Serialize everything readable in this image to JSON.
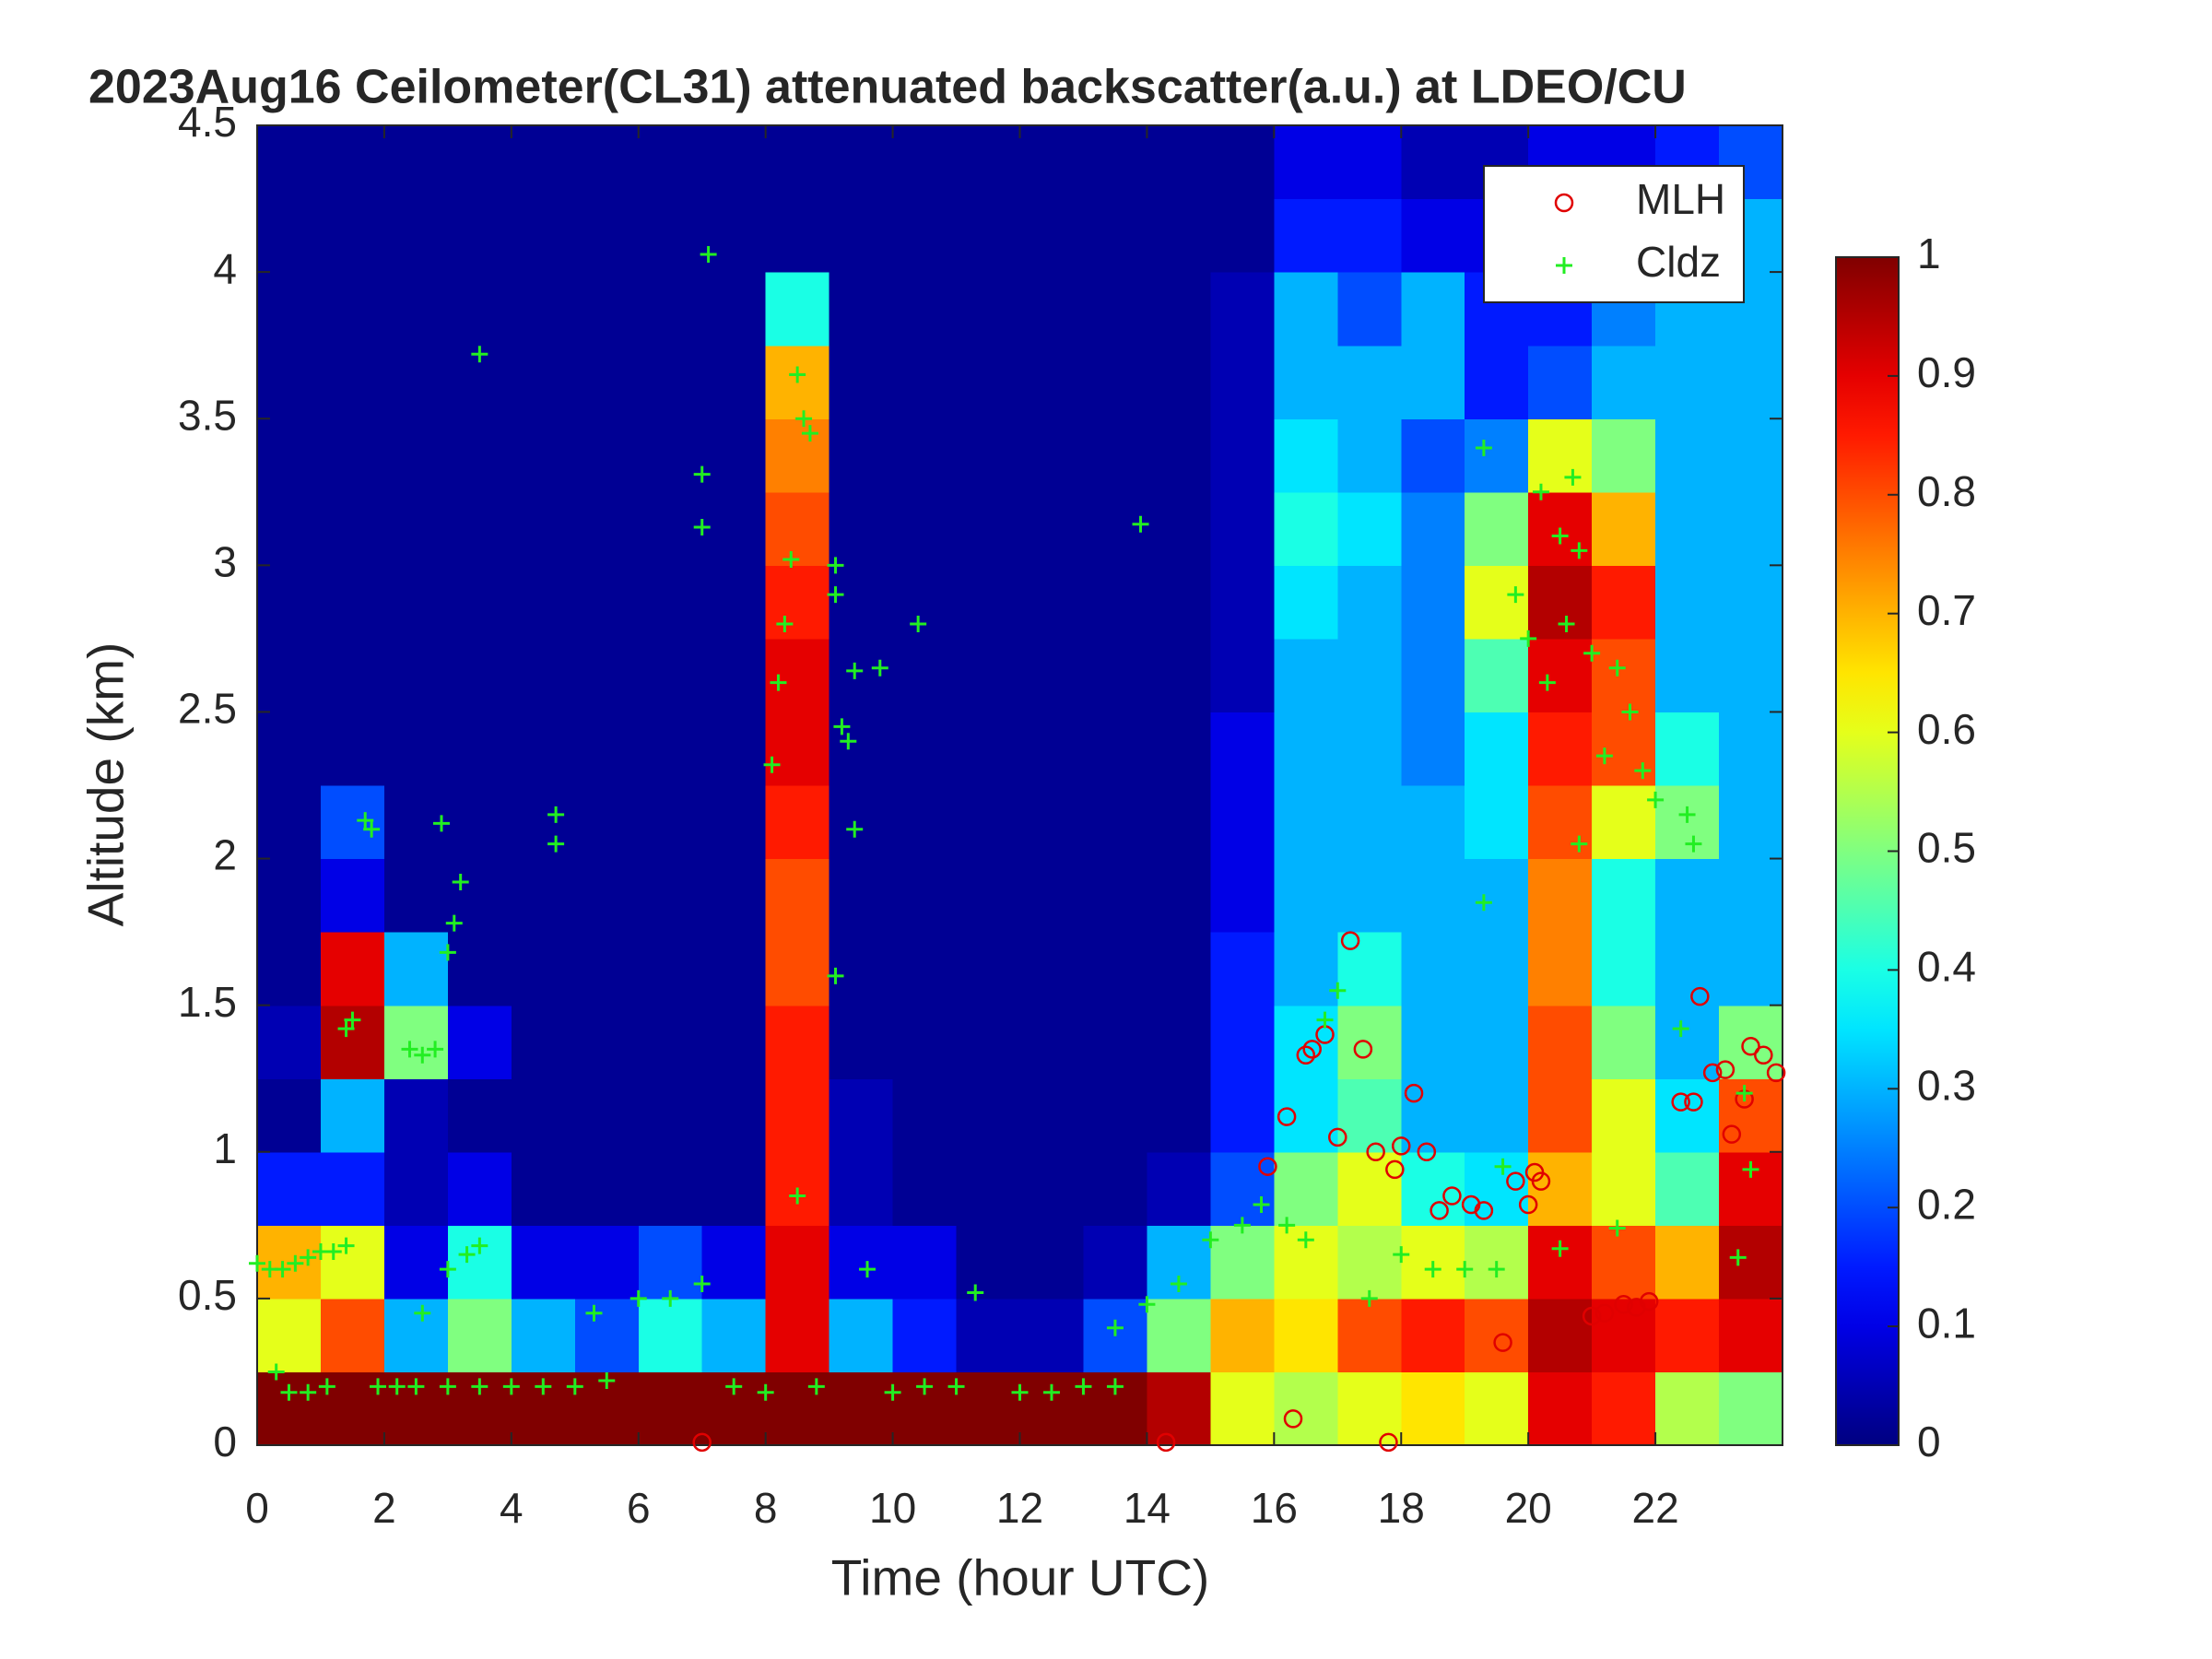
{
  "chart_data": {
    "type": "heatmap",
    "title": "2023Aug16 Ceilometer(CL31) attenuated backscatter(a.u.) at LDEO/CU",
    "xlabel": "Time (hour UTC)",
    "ylabel": "Altitude (km)",
    "xlim": [
      0,
      24
    ],
    "xticks": [
      0,
      2,
      4,
      6,
      8,
      10,
      12,
      14,
      16,
      18,
      20,
      22
    ],
    "ylim": [
      0,
      4.5
    ],
    "yticks": [
      0,
      0.5,
      1,
      1.5,
      2,
      2.5,
      3,
      3.5,
      4,
      4.5
    ],
    "xbins": [
      0,
      1,
      2,
      3,
      4,
      5,
      6,
      7,
      8,
      9,
      10,
      11,
      12,
      13,
      14,
      15,
      16,
      17,
      18,
      19,
      20,
      21,
      22,
      23,
      24
    ],
    "ybins": [
      0,
      0.25,
      0.5,
      0.75,
      1,
      1.25,
      1.5,
      1.75,
      2,
      2.25,
      2.5,
      2.75,
      3,
      3.25,
      3.5,
      3.75,
      4,
      4.25,
      4.5
    ],
    "z": [
      [
        1,
        1,
        1,
        1,
        1,
        1,
        1,
        1,
        1,
        1,
        1,
        1,
        1,
        1,
        0.95,
        0.6,
        0.55,
        0.6,
        0.65,
        0.6,
        0.9,
        0.85,
        0.55,
        0.5
      ],
      [
        0.6,
        0.8,
        0.3,
        0.5,
        0.3,
        0.2,
        0.4,
        0.3,
        0.9,
        0.3,
        0.15,
        0.05,
        0.05,
        0.2,
        0.5,
        0.7,
        0.65,
        0.8,
        0.85,
        0.8,
        0.95,
        0.9,
        0.85,
        0.9
      ],
      [
        0.7,
        0.6,
        0.1,
        0.4,
        0.1,
        0.1,
        0.2,
        0.1,
        0.9,
        0.1,
        0.1,
        0.02,
        0.02,
        0.05,
        0.3,
        0.5,
        0.6,
        0.55,
        0.6,
        0.55,
        0.9,
        0.8,
        0.7,
        0.95
      ],
      [
        0.15,
        0.15,
        0.05,
        0.1,
        0.02,
        0.02,
        0.02,
        0.02,
        0.85,
        0.05,
        0.02,
        0.02,
        0.02,
        0.02,
        0.05,
        0.2,
        0.5,
        0.6,
        0.4,
        0.35,
        0.7,
        0.6,
        0.45,
        0.9
      ],
      [
        0.02,
        0.3,
        0.05,
        0.02,
        0.02,
        0.02,
        0.02,
        0.02,
        0.85,
        0.05,
        0.02,
        0.02,
        0.02,
        0.02,
        0.02,
        0.15,
        0.35,
        0.45,
        0.3,
        0.3,
        0.8,
        0.6,
        0.35,
        0.8
      ],
      [
        0.05,
        0.95,
        0.5,
        0.1,
        0.02,
        0.02,
        0.02,
        0.02,
        0.85,
        0.02,
        0.02,
        0.02,
        0.02,
        0.02,
        0.02,
        0.15,
        0.35,
        0.5,
        0.3,
        0.3,
        0.8,
        0.5,
        0.3,
        0.5
      ],
      [
        0.02,
        0.9,
        0.3,
        0.02,
        0.02,
        0.02,
        0.02,
        0.02,
        0.8,
        0.02,
        0.02,
        0.02,
        0.02,
        0.02,
        0.02,
        0.15,
        0.3,
        0.4,
        0.3,
        0.3,
        0.75,
        0.4,
        0.3,
        0.3
      ],
      [
        0.02,
        0.1,
        0.02,
        0.02,
        0.02,
        0.02,
        0.02,
        0.02,
        0.8,
        0.02,
        0.02,
        0.02,
        0.02,
        0.02,
        0.02,
        0.1,
        0.3,
        0.3,
        0.3,
        0.3,
        0.75,
        0.4,
        0.3,
        0.3
      ],
      [
        0.02,
        0.2,
        0.02,
        0.02,
        0.02,
        0.02,
        0.02,
        0.02,
        0.85,
        0.02,
        0.02,
        0.02,
        0.02,
        0.02,
        0.02,
        0.1,
        0.3,
        0.3,
        0.3,
        0.35,
        0.8,
        0.6,
        0.5,
        0.3
      ],
      [
        0.02,
        0.02,
        0.02,
        0.02,
        0.02,
        0.02,
        0.02,
        0.02,
        0.9,
        0.02,
        0.02,
        0.02,
        0.02,
        0.02,
        0.02,
        0.1,
        0.3,
        0.3,
        0.25,
        0.35,
        0.85,
        0.8,
        0.4,
        0.3
      ],
      [
        0.02,
        0.02,
        0.02,
        0.02,
        0.02,
        0.02,
        0.02,
        0.02,
        0.9,
        0.02,
        0.02,
        0.02,
        0.02,
        0.02,
        0.02,
        0.05,
        0.3,
        0.3,
        0.25,
        0.45,
        0.9,
        0.8,
        0.3,
        0.3
      ],
      [
        0.02,
        0.02,
        0.02,
        0.02,
        0.02,
        0.02,
        0.02,
        0.02,
        0.85,
        0.02,
        0.02,
        0.02,
        0.02,
        0.02,
        0.02,
        0.05,
        0.35,
        0.3,
        0.25,
        0.6,
        0.95,
        0.85,
        0.3,
        0.3
      ],
      [
        0.02,
        0.02,
        0.02,
        0.02,
        0.02,
        0.02,
        0.02,
        0.02,
        0.8,
        0.02,
        0.02,
        0.02,
        0.02,
        0.02,
        0.02,
        0.05,
        0.4,
        0.35,
        0.25,
        0.5,
        0.9,
        0.7,
        0.3,
        0.3
      ],
      [
        0.02,
        0.02,
        0.02,
        0.02,
        0.02,
        0.02,
        0.02,
        0.02,
        0.75,
        0.02,
        0.02,
        0.02,
        0.02,
        0.02,
        0.02,
        0.05,
        0.35,
        0.3,
        0.2,
        0.25,
        0.6,
        0.5,
        0.3,
        0.3
      ],
      [
        0.02,
        0.02,
        0.02,
        0.02,
        0.02,
        0.02,
        0.02,
        0.02,
        0.7,
        0.02,
        0.02,
        0.02,
        0.02,
        0.02,
        0.02,
        0.05,
        0.3,
        0.3,
        0.3,
        0.15,
        0.2,
        0.3,
        0.3,
        0.3
      ],
      [
        0.02,
        0.02,
        0.02,
        0.02,
        0.02,
        0.02,
        0.02,
        0.02,
        0.4,
        0.02,
        0.02,
        0.02,
        0.02,
        0.02,
        0.02,
        0.05,
        0.3,
        0.2,
        0.3,
        0.15,
        0.15,
        0.25,
        0.3,
        0.3
      ],
      [
        0.02,
        0.02,
        0.02,
        0.02,
        0.02,
        0.02,
        0.02,
        0.02,
        0.02,
        0.02,
        0.02,
        0.02,
        0.02,
        0.02,
        0.02,
        0.02,
        0.15,
        0.15,
        0.1,
        0.1,
        0.1,
        0.15,
        0.2,
        0.3
      ],
      [
        0.02,
        0.02,
        0.02,
        0.02,
        0.02,
        0.02,
        0.02,
        0.02,
        0.02,
        0.02,
        0.02,
        0.02,
        0.02,
        0.02,
        0.02,
        0.02,
        0.1,
        0.1,
        0.05,
        0.05,
        0.1,
        0.1,
        0.15,
        0.2
      ]
    ],
    "colormap": "jet",
    "clim": [
      0,
      1
    ],
    "cticks": [
      0,
      0.1,
      0.2,
      0.3,
      0.4,
      0.5,
      0.6,
      0.7,
      0.8,
      0.9,
      1
    ],
    "legend": "upper right",
    "series": [
      {
        "name": "MLH",
        "type": "scatter",
        "marker": "circle",
        "color": "#e00000",
        "x": [
          7.0,
          14.3,
          15.9,
          16.2,
          16.3,
          16.5,
          16.6,
          16.8,
          17.0,
          17.2,
          17.4,
          17.6,
          17.8,
          17.9,
          18.0,
          18.2,
          18.4,
          18.6,
          18.8,
          19.1,
          19.3,
          19.6,
          19.8,
          20.0,
          20.1,
          20.2,
          21.0,
          21.2,
          21.5,
          21.7,
          21.9,
          22.4,
          22.6,
          22.7,
          22.9,
          23.1,
          23.2,
          23.4,
          23.5,
          23.7,
          23.9
        ],
        "y": [
          0.01,
          0.01,
          0.95,
          1.12,
          0.09,
          1.33,
          1.35,
          1.4,
          1.05,
          1.72,
          1.35,
          1.0,
          0.01,
          0.94,
          1.02,
          1.2,
          1.0,
          0.8,
          0.85,
          0.82,
          0.8,
          0.35,
          0.9,
          0.82,
          0.93,
          0.9,
          0.44,
          0.45,
          0.48,
          0.47,
          0.49,
          1.17,
          1.17,
          1.53,
          1.27,
          1.28,
          1.06,
          1.18,
          1.36,
          1.33,
          1.27
        ]
      },
      {
        "name": "Cldz",
        "type": "scatter",
        "marker": "plus",
        "color": "#22ee22",
        "x": [
          0.0,
          0.2,
          0.4,
          0.6,
          0.8,
          1.0,
          1.2,
          1.4,
          0.3,
          0.5,
          0.8,
          1.1,
          1.4,
          1.5,
          1.7,
          1.8,
          1.9,
          2.2,
          2.4,
          2.6,
          2.8,
          2.9,
          3.0,
          3.1,
          3.2,
          2.6,
          3.0,
          3.3,
          3.5,
          3.5,
          2.5,
          3.0,
          3.5,
          4.0,
          4.5,
          4.7,
          4.7,
          5.0,
          5.5,
          5.3,
          6.0,
          6.5,
          7.0,
          7.0,
          7.1,
          7.0,
          7.5,
          8.0,
          8.1,
          8.2,
          8.3,
          8.4,
          8.5,
          8.6,
          8.7,
          8.5,
          8.8,
          9.1,
          9.1,
          9.1,
          9.2,
          9.3,
          9.4,
          9.4,
          9.8,
          9.6,
          10.0,
          10.4,
          10.5,
          11.0,
          11.3,
          12.0,
          12.5,
          13.0,
          13.5,
          13.9,
          13.5,
          14.0,
          14.5,
          15.0,
          15.5,
          15.8,
          16.2,
          16.5,
          16.8,
          17.0,
          17.5,
          18.0,
          18.5,
          19.0,
          19.3,
          19.3,
          19.5,
          19.6,
          19.8,
          20.0,
          20.2,
          20.3,
          20.5,
          20.6,
          20.7,
          20.8,
          21.0,
          21.2,
          21.4,
          21.6,
          21.8,
          22.0,
          22.5,
          22.6,
          20.5,
          21.4,
          22.4,
          23.3,
          23.4,
          23.5,
          20.8
        ],
        "y": [
          0.62,
          0.6,
          0.6,
          0.62,
          0.64,
          0.66,
          0.66,
          0.68,
          0.25,
          0.18,
          0.18,
          0.2,
          1.42,
          1.45,
          2.13,
          2.1,
          0.2,
          0.2,
          1.35,
          1.33,
          1.35,
          2.12,
          1.68,
          1.78,
          1.92,
          0.45,
          0.6,
          0.65,
          3.72,
          0.68,
          0.2,
          0.2,
          0.2,
          0.2,
          0.2,
          2.15,
          2.05,
          0.2,
          0.22,
          0.45,
          0.5,
          0.5,
          3.31,
          3.13,
          4.06,
          0.55,
          0.2,
          0.18,
          2.32,
          2.6,
          2.8,
          3.02,
          3.65,
          3.5,
          3.45,
          0.85,
          0.2,
          3.0,
          2.9,
          1.6,
          2.45,
          2.4,
          2.1,
          2.64,
          2.65,
          0.6,
          0.18,
          2.8,
          0.2,
          0.2,
          0.52,
          0.18,
          0.18,
          0.2,
          0.2,
          3.14,
          0.4,
          0.48,
          0.55,
          0.7,
          0.75,
          0.82,
          0.75,
          0.7,
          1.45,
          1.55,
          0.5,
          0.65,
          0.6,
          0.6,
          3.4,
          1.85,
          0.6,
          0.95,
          2.9,
          2.75,
          3.25,
          2.6,
          3.1,
          2.8,
          3.3,
          3.05,
          2.7,
          2.35,
          2.65,
          2.5,
          2.3,
          2.2,
          2.15,
          2.05,
          0.67,
          0.74,
          1.42,
          0.64,
          1.2,
          0.94,
          2.05
        ]
      }
    ]
  }
}
